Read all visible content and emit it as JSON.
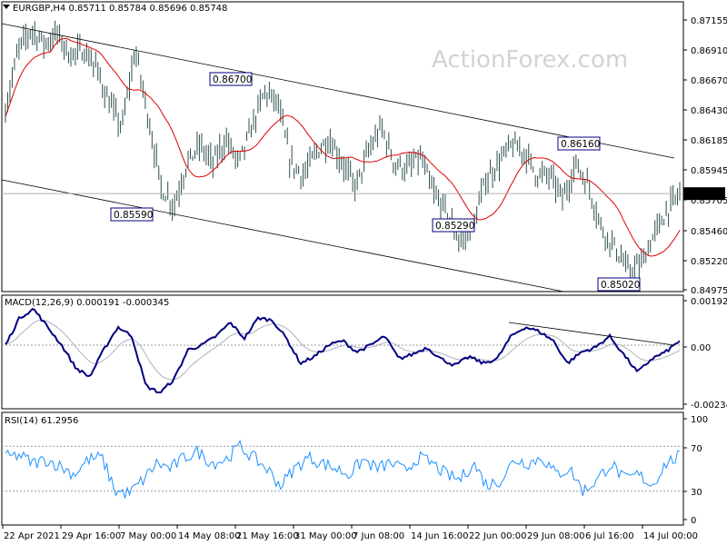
{
  "symbol_header": "EURGBP,H4  0.85711 0.85784 0.85696 0.85748",
  "watermark": "ActionForex.com",
  "colors": {
    "price": "#2f4f4f",
    "ma": "#e00000",
    "channel": "#000000",
    "macd": "#000080",
    "signal": "#b0b0c0",
    "rsi": "#1e90ff",
    "box": "#000080"
  },
  "chart_data": [
    {
      "type": "line",
      "title": "EURGBP,H4",
      "x": [
        "22 Apr 2021",
        "29 Apr 16:00",
        "7 May 00:00",
        "14 May 08:00",
        "21 May 16:00",
        "31 May 00:00",
        "7 Jun 08:00",
        "14 Jun 16:00",
        "22 Jun 00:00",
        "29 Jun 08:00",
        "6 Jul 16:00",
        "14 Jul 00:00"
      ],
      "ylim": [
        0.8493,
        0.8735
      ],
      "y_ticks": [
        "0.87155",
        "0.86910",
        "0.86670",
        "0.86430",
        "0.86185",
        "0.85945",
        "0.85705",
        "0.85460",
        "0.85220",
        "0.84975"
      ],
      "current_price_label": "0.85748",
      "current_price": 0.85748,
      "annotations": [
        {
          "text": "0.85590",
          "value": 0.8559
        },
        {
          "text": "0.86700",
          "value": 0.867
        },
        {
          "text": "0.85290",
          "value": 0.8529
        },
        {
          "text": "0.86160",
          "value": 0.8616
        },
        {
          "text": "0.85020",
          "value": 0.8502
        }
      ],
      "anchors": [
        0.8645,
        0.8695,
        0.8712,
        0.87,
        0.8708,
        0.869,
        0.8695,
        0.868,
        0.865,
        0.863,
        0.8695,
        0.864,
        0.858,
        0.8565,
        0.86,
        0.8615,
        0.86,
        0.862,
        0.86,
        0.863,
        0.866,
        0.865,
        0.86,
        0.859,
        0.861,
        0.862,
        0.86,
        0.858,
        0.861,
        0.863,
        0.86,
        0.8595,
        0.8605,
        0.8575,
        0.856,
        0.8535,
        0.8545,
        0.8585,
        0.86,
        0.8615,
        0.861,
        0.859,
        0.859,
        0.857,
        0.86,
        0.858,
        0.8545,
        0.853,
        0.851,
        0.8515,
        0.854,
        0.856,
        0.8575
      ],
      "series": [
        {
          "kind": "price",
          "values": "anchors"
        },
        {
          "kind": "moving-average",
          "values": "anchors smoothed"
        }
      ]
    },
    {
      "type": "line",
      "title": "MACD(12,26,9) 0.000191 -0.000345",
      "ylim": [
        -0.0028,
        0.0022
      ],
      "y_ticks": [
        "0.001922",
        "0.00",
        "-0.002342"
      ],
      "macd": [
        0.0,
        0.0012,
        0.0016,
        0.0008,
        0.0,
        -0.001,
        -0.0014,
        -0.0002,
        0.0008,
        0.0004,
        -0.0018,
        -0.0021,
        -0.0015,
        -0.0002,
        0.0,
        0.0004,
        0.001,
        0.0003,
        0.0012,
        0.0011,
        0.0003,
        -0.0008,
        -0.0005,
        0.0,
        0.0002,
        -0.0003,
        0.0,
        0.0004,
        -0.0006,
        -0.0004,
        -0.0001,
        -0.0006,
        -0.0009,
        -0.0005,
        -0.0008,
        -0.0006,
        0.0004,
        0.0008,
        0.0006,
        0.0002,
        -0.0008,
        -0.0003,
        -0.0001,
        0.0004,
        -0.0004,
        -0.0012,
        -0.0006,
        -0.0003,
        0.0002
      ],
      "macd_current": 0.000191,
      "signal_current": -0.000345,
      "trendline": {
        "from": 0.001,
        "to": 0.0
      }
    },
    {
      "type": "line",
      "title": "RSI(14) 61.2956",
      "ylim": [
        0,
        100
      ],
      "y_ticks": [
        "100",
        "70",
        "30",
        "0"
      ],
      "levels": [
        70,
        30
      ],
      "rsi_anchors": [
        60,
        62,
        55,
        58,
        52,
        45,
        58,
        60,
        30,
        28,
        40,
        55,
        50,
        60,
        65,
        55,
        58,
        70,
        60,
        50,
        35,
        50,
        60,
        55,
        50,
        45,
        58,
        50,
        55,
        48,
        60,
        55,
        45,
        40,
        55,
        35,
        40,
        58,
        55,
        60,
        45,
        50,
        30,
        40,
        55,
        40,
        45,
        35,
        55,
        61
      ]
    }
  ]
}
